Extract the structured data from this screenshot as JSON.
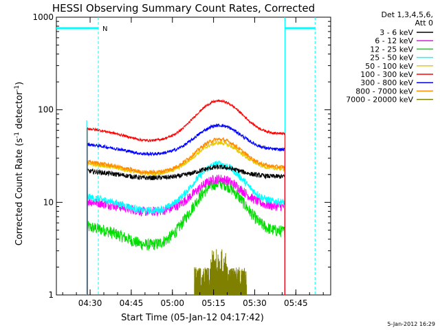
{
  "chart_data": {
    "type": "line",
    "title": "HESSI Observing Summary Count Rates, Corrected",
    "xlabel": "Start Time (05-Jan-12 04:17:42)",
    "ylabel": "Corrected Count Rate (s⁻¹ detector⁻¹)",
    "ylabel_main": "Corrected Count Rate (s",
    "ylabel_sup1": "-1",
    "ylabel_mid": " detector",
    "ylabel_sup2": "-1",
    "ylabel_end": ")",
    "y_scale": "log",
    "ylim": [
      1,
      1000
    ],
    "xlim_minutes": [
      "04:17:42",
      "05:57:42"
    ],
    "x_ticks": [
      "04:30",
      "04:45",
      "05:00",
      "05:15",
      "05:30",
      "05:45"
    ],
    "y_ticks": [
      "1",
      "10",
      "100",
      "1000"
    ],
    "timestamp": "5-Jan-2012 16:29",
    "legend_placement": "right",
    "legend_header": [
      "Det 1,3,4,5,6,",
      "Att 0"
    ],
    "legend": [
      {
        "label": "3 - 6 keV",
        "color": "#000000"
      },
      {
        "label": "6 - 12 keV",
        "color": "#ff00ff"
      },
      {
        "label": "12 - 25 keV",
        "color": "#00dd00"
      },
      {
        "label": "25 - 50 keV",
        "color": "#00ffff"
      },
      {
        "label": "50 - 100 keV",
        "color": "#e8c800"
      },
      {
        "label": "100 - 300 keV",
        "color": "#ff0000"
      },
      {
        "label": "300 - 800 keV",
        "color": "#0000ff"
      },
      {
        "label": "800 - 7000 keV",
        "color": "#ff8c00"
      },
      {
        "label": "7000 - 20000 keV",
        "color": "#808000"
      }
    ],
    "series": [
      {
        "name": "3 - 6 keV",
        "color": "#000000",
        "base": 19,
        "peak": 24,
        "noise": 0.06
      },
      {
        "name": "6 - 12 keV",
        "color": "#ff00ff",
        "base": 9,
        "peak": 18,
        "noise": 0.12
      },
      {
        "name": "12 - 25 keV",
        "color": "#00dd00",
        "base": 4.8,
        "peak": 16,
        "noise": 0.15
      },
      {
        "name": "25 - 50 keV",
        "color": "#00ffff",
        "base": 10,
        "peak": 26,
        "noise": 0.09
      },
      {
        "name": "50 - 100 keV",
        "color": "#e8c800",
        "base": 23,
        "peak": 44,
        "noise": 0.05
      },
      {
        "name": "100 - 300 keV",
        "color": "#ff0000",
        "base": 55,
        "peak": 125,
        "noise": 0.03
      },
      {
        "name": "300 - 800 keV",
        "color": "#0000ff",
        "base": 37,
        "peak": 68,
        "noise": 0.04
      },
      {
        "name": "800 - 7000 keV",
        "color": "#ff8c00",
        "base": 24,
        "peak": 48,
        "noise": 0.05
      },
      {
        "name": "7000 - 20000 keV",
        "color": "#808000",
        "base": 1,
        "peak": 2,
        "noise": 0.2
      }
    ],
    "data_start": "04:29",
    "data_end": "05:41",
    "peak_time": "05:17",
    "markers": {
      "saa_top_label": "N",
      "night_intervals": [
        [
          "04:17:42",
          "04:33"
        ],
        [
          "05:41",
          "05:52"
        ]
      ]
    }
  }
}
